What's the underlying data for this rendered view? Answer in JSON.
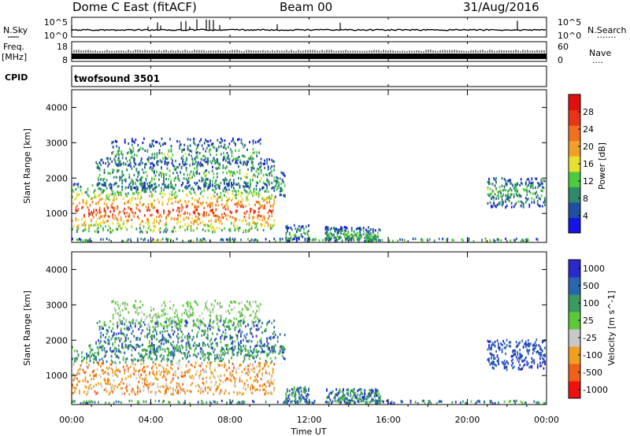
{
  "header": {
    "station": "Dome C East (fitACF)",
    "beam": "Beam 00",
    "date": "31/Aug/2016"
  },
  "colors": {
    "power": [
      "#1414e6",
      "#1e4fa0",
      "#2e8a6a",
      "#4ccc3c",
      "#e8e030",
      "#f0a02a",
      "#f07020",
      "#e83418",
      "#e01010"
    ],
    "velocity": [
      "#f01010",
      "#f06018",
      "#f0a020",
      "#c8c8c8",
      "#5cc83a",
      "#3a9a60",
      "#2a66b0",
      "#2a2acc"
    ]
  },
  "chart_data": [
    {
      "type": "line",
      "name": "noise-panel",
      "left_label": "N.Sky",
      "right_label": "N.Search",
      "right_dots": ".......",
      "y_ticks_left": [
        "10^5",
        "10^0"
      ],
      "y_ticks_right": [
        "10^5",
        "10^0"
      ]
    },
    {
      "type": "line",
      "name": "frequency-panel",
      "left_label_1": "Freq.",
      "left_label_2": "[MHz]",
      "right_label": "Nave",
      "right_dots": "....",
      "y_ticks_left": [
        "18",
        "8"
      ],
      "y_ticks_right": [
        "60",
        "0"
      ]
    },
    {
      "type": "table",
      "name": "cpid-panel",
      "label": "CPID",
      "value": "twofsound 3501"
    },
    {
      "type": "heatmap",
      "name": "power-panel",
      "ylabel": "Slant Range [km]",
      "y_ticks": [
        "1000",
        "2000",
        "3000",
        "4000"
      ],
      "y_values": [
        1000,
        2000,
        3000,
        4000
      ],
      "ylim": [
        180,
        4500
      ],
      "xlim_hours": [
        0,
        24
      ],
      "colorbar_label": "Power [dB]",
      "colorbar_ticks": [
        "4",
        "8",
        "12",
        "16",
        "20",
        "24",
        "28"
      ],
      "colorbar_range": [
        0,
        32
      ]
    },
    {
      "type": "heatmap",
      "name": "velocity-panel",
      "ylabel": "Slant Range [km]",
      "y_ticks": [
        "1000",
        "2000",
        "3000",
        "4000"
      ],
      "y_values": [
        1000,
        2000,
        3000,
        4000
      ],
      "ylim": [
        180,
        4500
      ],
      "xlim_hours": [
        0,
        24
      ],
      "colorbar_label": "Velocity [m s^-1]",
      "colorbar_ticks": [
        "-1000",
        "-500",
        "-100",
        "-25",
        "25",
        "100",
        "500",
        "1000"
      ],
      "x_ticks": [
        "00:00",
        "04:00",
        "08:00",
        "12:00",
        "16:00",
        "20:00",
        "00:00"
      ],
      "x_values": [
        0,
        4,
        8,
        12,
        16,
        20,
        24
      ],
      "xlabel": "Time UT"
    }
  ]
}
